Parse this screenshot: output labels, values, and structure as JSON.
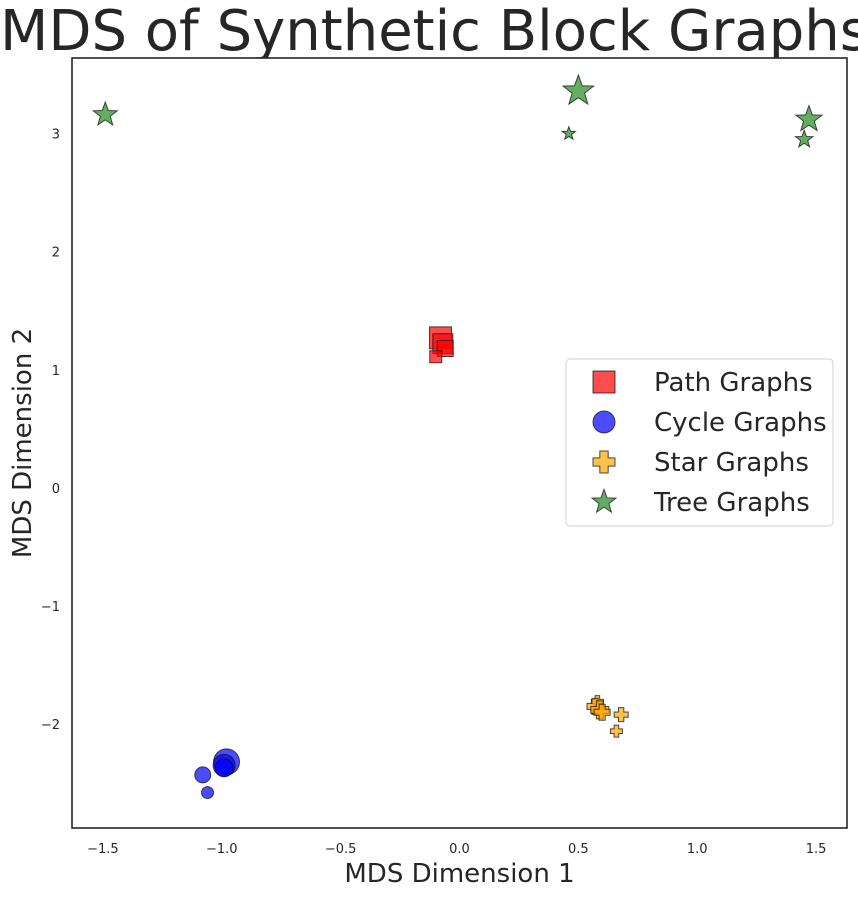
{
  "chart_data": {
    "type": "scatter",
    "title": "MDS of Synthetic Block Graphs",
    "xlabel": "MDS Dimension 1",
    "ylabel": "MDS Dimension 2",
    "xlim": [
      -1.63,
      1.63
    ],
    "ylim": [
      -2.88,
      3.64
    ],
    "xticks": [
      -1.5,
      -1.0,
      -0.5,
      0.0,
      0.5,
      1.0,
      1.5
    ],
    "xtick_labels": [
      "−1.5",
      "−1.0",
      "−0.5",
      "0.0",
      "0.5",
      "1.0",
      "1.5"
    ],
    "yticks": [
      -2,
      -1,
      0,
      1,
      2,
      3
    ],
    "ytick_labels": [
      "−2",
      "−1",
      "0",
      "1",
      "2",
      "3"
    ],
    "grid": false,
    "legend_position": "center-right",
    "series": [
      {
        "name": "Path Graphs",
        "marker": "square",
        "color": "#ff0000",
        "points": [
          {
            "x": -0.08,
            "y": 1.27,
            "s": 11
          },
          {
            "x": -0.07,
            "y": 1.22,
            "s": 10
          },
          {
            "x": -0.06,
            "y": 1.18,
            "s": 8
          },
          {
            "x": -0.1,
            "y": 1.11,
            "s": 6
          }
        ]
      },
      {
        "name": "Cycle Graphs",
        "marker": "circle",
        "color": "#0000ff",
        "points": [
          {
            "x": -0.98,
            "y": -2.32,
            "s": 13
          },
          {
            "x": -0.99,
            "y": -2.35,
            "s": 11
          },
          {
            "x": -0.99,
            "y": -2.37,
            "s": 9
          },
          {
            "x": -1.08,
            "y": -2.43,
            "s": 8
          },
          {
            "x": -1.06,
            "y": -2.58,
            "s": 6
          }
        ]
      },
      {
        "name": "Star Graphs",
        "marker": "plus",
        "color": "#ffa500",
        "points": [
          {
            "x": 0.58,
            "y": -1.81,
            "s": 6
          },
          {
            "x": 0.57,
            "y": -1.85,
            "s": 8
          },
          {
            "x": 0.59,
            "y": -1.88,
            "s": 9
          },
          {
            "x": 0.6,
            "y": -1.9,
            "s": 8
          },
          {
            "x": 0.68,
            "y": -1.92,
            "s": 7
          },
          {
            "x": 0.66,
            "y": -2.06,
            "s": 6
          }
        ]
      },
      {
        "name": "Tree Graphs",
        "marker": "star",
        "color": "#228b22",
        "points": [
          {
            "x": -1.49,
            "y": 3.16,
            "s": 11
          },
          {
            "x": 0.5,
            "y": 3.36,
            "s": 14
          },
          {
            "x": 0.46,
            "y": 3.0,
            "s": 6
          },
          {
            "x": 1.47,
            "y": 3.12,
            "s": 12
          },
          {
            "x": 1.45,
            "y": 2.95,
            "s": 8
          }
        ]
      }
    ]
  }
}
